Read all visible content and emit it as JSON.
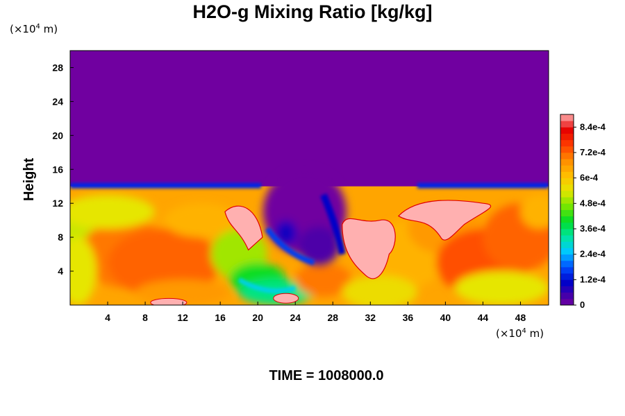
{
  "chart_data": {
    "type": "heatmap",
    "title": "H2O-g Mixing Ratio [kg/kg]",
    "ylabel": "Height",
    "x_unit_prefix": "(×10",
    "x_unit_exp": "4",
    "x_unit_suffix": " m)",
    "y_unit_prefix": "(×10",
    "y_unit_exp": "4",
    "y_unit_suffix": " m)",
    "footer": "TIME = 1008000.0",
    "xlim": [
      0,
      51
    ],
    "ylim": [
      0,
      30
    ],
    "x_ticks": [
      4,
      8,
      12,
      16,
      20,
      24,
      28,
      32,
      36,
      40,
      44,
      48
    ],
    "x_tick_labels": [
      "4",
      "8",
      "12",
      "16",
      "20",
      "24",
      "28",
      "32",
      "36",
      "40",
      "44",
      "48"
    ],
    "y_ticks": [
      4,
      8,
      12,
      16,
      20,
      24,
      28
    ],
    "y_tick_labels": [
      "4",
      "8",
      "12",
      "16",
      "20",
      "24",
      "28"
    ],
    "colorbar": {
      "min": 0,
      "max": 0.0009,
      "levels": 30,
      "ticks": [
        0,
        0.00012,
        0.00024,
        0.00036,
        0.00048,
        0.0006,
        0.00072,
        0.00084
      ],
      "tick_labels": [
        "0",
        "1.2e-4",
        "2.4e-4",
        "3.6e-4",
        "4.8e-4",
        "6e-4",
        "7.2e-4",
        "8.4e-4"
      ]
    },
    "field_summary": {
      "upper_layer_value": 0,
      "boundary_height": 14,
      "lower_layer_range": [
        0.0003,
        0.0009
      ],
      "dry_intrusion_center_x": 25
    },
    "colors": {
      "dry": "#7000a0",
      "max": "#ffb0b0"
    }
  }
}
